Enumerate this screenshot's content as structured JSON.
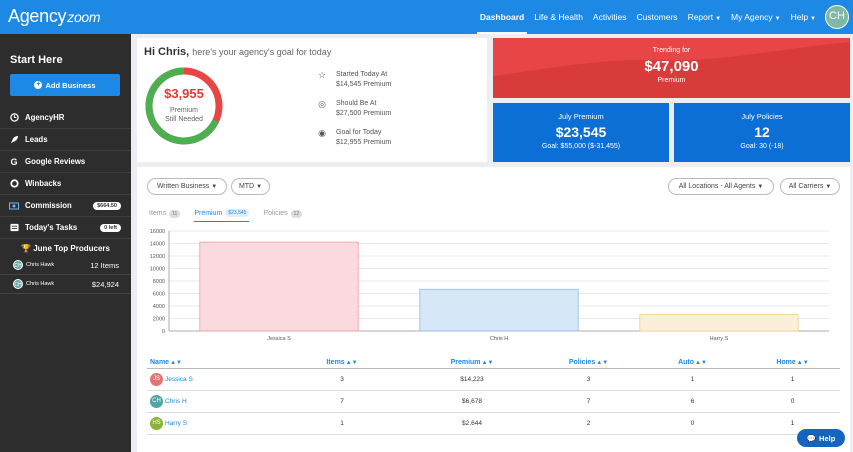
{
  "app": {
    "logo_main": "Agency",
    "logo_script": "zoom",
    "user_initials": "CH"
  },
  "nav": [
    {
      "label": "Dashboard",
      "caret": false,
      "active": true
    },
    {
      "label": "Life & Health",
      "caret": false
    },
    {
      "label": "Activities",
      "caret": false
    },
    {
      "label": "Customers",
      "caret": false
    },
    {
      "label": "Report",
      "caret": true
    },
    {
      "label": "My Agency",
      "caret": true
    },
    {
      "label": "Help",
      "caret": true
    }
  ],
  "sidebar": {
    "title": "Start Here",
    "add_button": "Add Business",
    "items": [
      {
        "label": "AgencyHR",
        "icon": "clock-icon"
      },
      {
        "label": "Leads",
        "icon": "rocket-icon"
      },
      {
        "label": "Google Reviews",
        "icon": "google-icon"
      },
      {
        "label": "Winbacks",
        "icon": "life-ring-icon"
      },
      {
        "label": "Commission",
        "icon": "money-icon",
        "badge": "$664.50"
      },
      {
        "label": "Today's Tasks",
        "icon": "tasks-icon",
        "badge": "0 left"
      }
    ],
    "producers_title": "June Top Producers",
    "producers": [
      {
        "initials": "CH",
        "name": "Chris Hawk",
        "value": "12 Items"
      },
      {
        "initials": "CH",
        "name": "Chris Hawk",
        "value": "$24,924"
      }
    ]
  },
  "greeting": {
    "title": "Hi Chris,",
    "subtitle": "here's your agency's goal for today",
    "donut_value": "$3,955",
    "donut_line1": "Premium",
    "donut_line2": "Still Needed",
    "donut_progress": 0.68,
    "goals": [
      {
        "label": "Started Today At",
        "value": "$14,545 Premium",
        "icon": "star-icon"
      },
      {
        "label": "Should Be At",
        "value": "$27,500 Premium",
        "icon": "target-icon"
      },
      {
        "label": "Goal for Today",
        "value": "$12,955 Premium",
        "icon": "bullseye-icon"
      }
    ]
  },
  "trending": {
    "label": "Trending for",
    "value": "$47,090",
    "sub": "Premium"
  },
  "kpis": [
    {
      "title": "July Premium",
      "value": "$23,545",
      "goal": "Goal: $55,000 ($-31,455)"
    },
    {
      "title": "July Policies",
      "value": "12",
      "goal": "Goal: 30 (-18)"
    }
  ],
  "filters": {
    "business": "Written Business",
    "period": "MTD",
    "locations": "All Locations - All Agents",
    "carriers": "All Carriers"
  },
  "tabs": [
    {
      "label": "Items",
      "count": "11",
      "active": false
    },
    {
      "label": "Premium",
      "count": "$23,545",
      "active": true
    },
    {
      "label": "Policies",
      "count": "12",
      "active": false
    }
  ],
  "chart_data": {
    "type": "bar",
    "categories": [
      "Jessica S",
      "Chris H",
      "Harry S"
    ],
    "values": [
      14223,
      6678,
      2644
    ],
    "ylim": [
      0,
      16000
    ],
    "yticks": [
      "0",
      "2000",
      "4000",
      "6000",
      "8000",
      "10000",
      "12000",
      "14000",
      "16000"
    ],
    "grid": true,
    "colors": [
      {
        "fill": "#fadadf",
        "stroke": "#f29aa8"
      },
      {
        "fill": "#d6e7f7",
        "stroke": "#8cbbe8"
      },
      {
        "fill": "#fcefd9",
        "stroke": "#f2cf8a"
      }
    ]
  },
  "table": {
    "headers": [
      "Name",
      "Items",
      "Premium",
      "Policies",
      "Auto",
      "Home"
    ],
    "rows": [
      {
        "initials": "JS",
        "color": "#e57373",
        "name": "Jessica S",
        "items": "3",
        "premium": "$14,223",
        "policies": "3",
        "auto": "1",
        "home": "1"
      },
      {
        "initials": "CH",
        "color": "#4fa3a5",
        "name": "Chris H",
        "items": "7",
        "premium": "$6,678",
        "policies": "7",
        "auto": "6",
        "home": "0"
      },
      {
        "initials": "HS",
        "color": "#8bb33a",
        "name": "Harry S",
        "items": "1",
        "premium": "$2,644",
        "policies": "2",
        "auto": "0",
        "home": "1"
      }
    ]
  },
  "help_button": "Help"
}
